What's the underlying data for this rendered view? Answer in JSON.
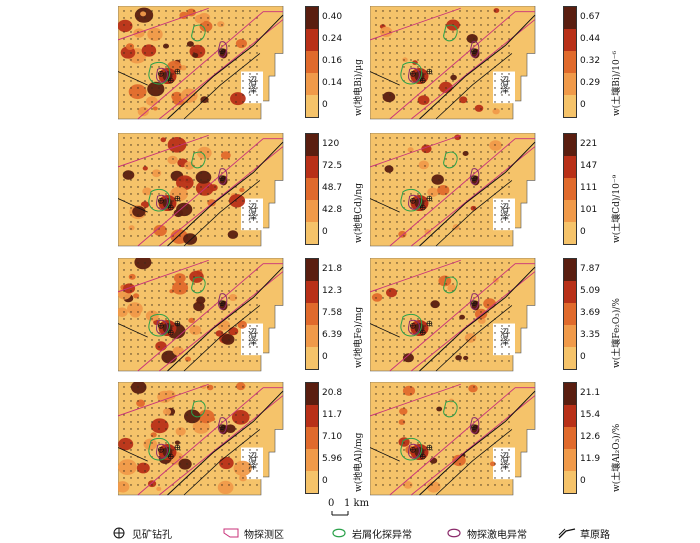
{
  "panels": [
    {
      "id": "L1",
      "unit": "w(地电Bi)/μg",
      "ticks": [
        "0.40",
        "0.24",
        "0.16",
        "0.14",
        "0"
      ],
      "colors": [
        "#5a1e10",
        "#b83018",
        "#e06a2c",
        "#f09a4a",
        "#f5c36a"
      ]
    },
    {
      "id": "L2",
      "unit": "w(地电Cd)/ng",
      "ticks": [
        "120",
        "72.5",
        "48.7",
        "42.8",
        "0"
      ],
      "colors": [
        "#5a1e10",
        "#b83018",
        "#e06a2c",
        "#f09a4a",
        "#f5c36a"
      ]
    },
    {
      "id": "L3",
      "unit": "w(地电Fe)/mg",
      "ticks": [
        "21.8",
        "12.3",
        "7.58",
        "6.39",
        "0"
      ],
      "colors": [
        "#5a1e10",
        "#b83018",
        "#e06a2c",
        "#f09a4a",
        "#f5c36a"
      ]
    },
    {
      "id": "L4",
      "unit": "w(地电Al)/mg",
      "ticks": [
        "20.8",
        "11.7",
        "7.10",
        "5.96",
        "0"
      ],
      "colors": [
        "#5a1e10",
        "#b83018",
        "#e06a2c",
        "#f09a4a",
        "#f5c36a"
      ]
    },
    {
      "id": "R1",
      "unit": "w(土壤Bi)/10⁻⁶",
      "ticks": [
        "0.67",
        "0.44",
        "0.32",
        "0.29",
        "0"
      ],
      "colors": [
        "#5a1e10",
        "#b83018",
        "#e06a2c",
        "#f09a4a",
        "#f5c36a"
      ]
    },
    {
      "id": "R2",
      "unit": "w(土壤Cd)/10⁻⁹",
      "ticks": [
        "221",
        "147",
        "111",
        "101",
        "0"
      ],
      "colors": [
        "#5a1e10",
        "#b83018",
        "#e06a2c",
        "#f09a4a",
        "#f5c36a"
      ]
    },
    {
      "id": "R3",
      "unit": "w(土壤Fe₂O₃)/%",
      "ticks": [
        "7.87",
        "5.09",
        "3.69",
        "3.35",
        "0"
      ],
      "colors": [
        "#5a1e10",
        "#b83018",
        "#e06a2c",
        "#f09a4a",
        "#f5c36a"
      ]
    },
    {
      "id": "R4",
      "unit": "w(土壤Al₂O₃)/%",
      "ticks": [
        "21.1",
        "15.4",
        "12.6",
        "11.9",
        "0"
      ],
      "colors": [
        "#5a1e10",
        "#b83018",
        "#e06a2c",
        "#f09a4a",
        "#f5c36a"
      ]
    }
  ],
  "map_label": "沼泽",
  "scale": {
    "zero": "0",
    "value": "1 km"
  },
  "legend": [
    {
      "label": "见矿钻孔",
      "symbol": "drill-hole"
    },
    {
      "label": "物探测区",
      "symbol": "survey-area"
    },
    {
      "label": "岩屑化探异常",
      "symbol": "geochem-anomaly"
    },
    {
      "label": "物探激电异常",
      "symbol": "ip-anomaly"
    },
    {
      "label": "草原路",
      "symbol": "grassland-road"
    }
  ]
}
